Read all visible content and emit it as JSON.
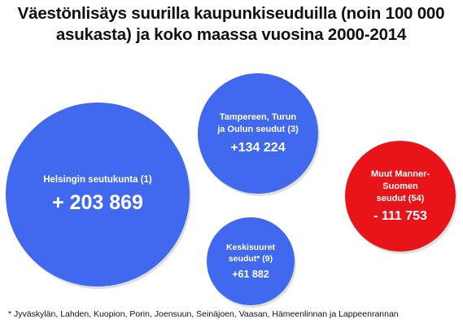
{
  "title": {
    "line1": "Väestönlisäys suurilla kaupunkiseuduilla (noin 100 000",
    "line2": "asukasta) ja koko maassa vuosina 2000-2014"
  },
  "chart_data": {
    "type": "bubble",
    "title": "Väestönlisäys suurilla kaupunkiseuduilla (noin 100 000 asukasta) ja koko maassa vuosina 2000-2014",
    "bubbles": [
      {
        "label_lines": [
          "Helsingin seutukunta (1)"
        ],
        "value_text": "+ 203 869",
        "value": 203869,
        "color": "#4169F0"
      },
      {
        "label_lines": [
          "Tampereen, Turun",
          "ja Oulun seudut (3)"
        ],
        "value_text": "+134 224",
        "value": 134224,
        "color": "#4169F0"
      },
      {
        "label_lines": [
          "Muut Manner-",
          "Suomen",
          "seudut (54)"
        ],
        "value_text": "- 111 753",
        "value": -111753,
        "color": "#E8141A"
      },
      {
        "label_lines": [
          "Keskisuuret",
          "seudut* (9)"
        ],
        "value_text": "+61 882",
        "value": 61882,
        "color": "#4169F0"
      }
    ]
  },
  "footnote": "* Jyväskylän, Lahden, Kuopion, Porin, Joensuun, Seinäjoen, Vaasan, Hämeenlinnan ja Lappeenrannan"
}
